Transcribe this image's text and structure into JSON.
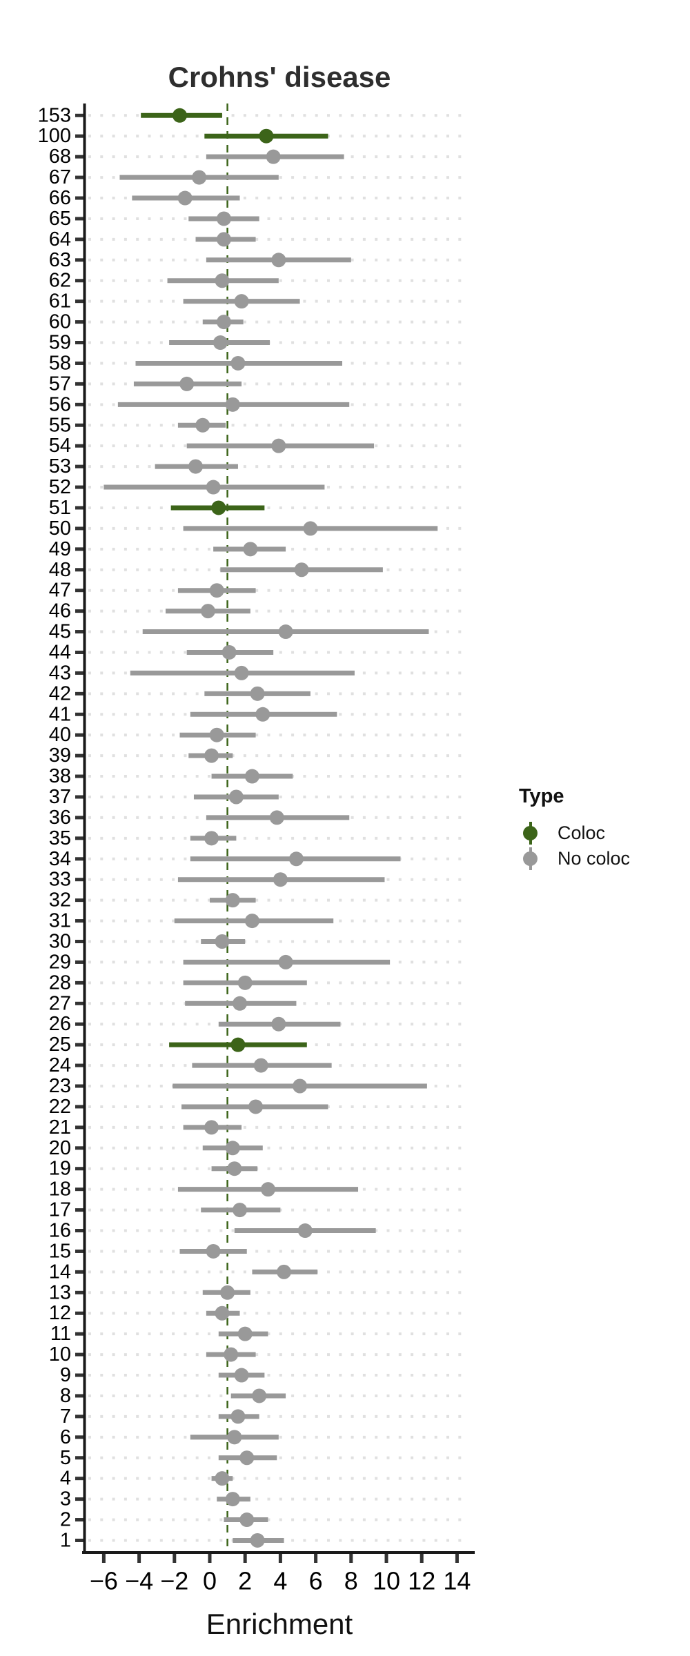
{
  "title": "Crohns' disease",
  "xlabel": "Enrichment",
  "legend": {
    "title": "Type",
    "items": [
      {
        "label": "Coloc",
        "color": "#3C6419"
      },
      {
        "label": "No coloc",
        "color": "#999999"
      }
    ]
  },
  "colors": {
    "coloc": "#3C6419",
    "no_coloc": "#999999",
    "ref_line": "#3C6419",
    "grid_dots": "#E0E0E0",
    "axis_line": "#1a1a1a",
    "tick_mark": "#333333",
    "tick_text": "#000000"
  },
  "chart_data": {
    "type": "forest (dot + interval)",
    "title": "Crohns' disease",
    "xlabel": "Enrichment",
    "ylabel": "",
    "x_ticks": [
      -6,
      -4,
      -2,
      0,
      2,
      4,
      6,
      8,
      10,
      12,
      14
    ],
    "xlim": [
      -7.15,
      14.7
    ],
    "ref_line_x": 1,
    "grid": "dotted horizontal per row",
    "legend_position": "right",
    "rows": [
      {
        "label": "153",
        "type": "Coloc",
        "estimate": -1.7,
        "ci_low": -3.9,
        "ci_high": 0.7
      },
      {
        "label": "100",
        "type": "Coloc",
        "estimate": 3.2,
        "ci_low": -0.3,
        "ci_high": 6.7
      },
      {
        "label": "68",
        "type": "No coloc",
        "estimate": 3.6,
        "ci_low": -0.2,
        "ci_high": 7.6
      },
      {
        "label": "67",
        "type": "No coloc",
        "estimate": -0.6,
        "ci_low": -5.1,
        "ci_high": 3.9
      },
      {
        "label": "66",
        "type": "No coloc",
        "estimate": -1.4,
        "ci_low": -4.4,
        "ci_high": 1.7
      },
      {
        "label": "65",
        "type": "No coloc",
        "estimate": 0.8,
        "ci_low": -1.2,
        "ci_high": 2.8
      },
      {
        "label": "64",
        "type": "No coloc",
        "estimate": 0.8,
        "ci_low": -0.8,
        "ci_high": 2.6
      },
      {
        "label": "63",
        "type": "No coloc",
        "estimate": 3.9,
        "ci_low": -0.2,
        "ci_high": 8.0
      },
      {
        "label": "62",
        "type": "No coloc",
        "estimate": 0.7,
        "ci_low": -2.4,
        "ci_high": 3.9
      },
      {
        "label": "61",
        "type": "No coloc",
        "estimate": 1.8,
        "ci_low": -1.5,
        "ci_high": 5.1
      },
      {
        "label": "60",
        "type": "No coloc",
        "estimate": 0.8,
        "ci_low": -0.4,
        "ci_high": 1.9
      },
      {
        "label": "59",
        "type": "No coloc",
        "estimate": 0.6,
        "ci_low": -2.3,
        "ci_high": 3.4
      },
      {
        "label": "58",
        "type": "No coloc",
        "estimate": 1.6,
        "ci_low": -4.2,
        "ci_high": 7.5
      },
      {
        "label": "57",
        "type": "No coloc",
        "estimate": -1.3,
        "ci_low": -4.3,
        "ci_high": 1.8
      },
      {
        "label": "56",
        "type": "No coloc",
        "estimate": 1.3,
        "ci_low": -5.2,
        "ci_high": 7.9
      },
      {
        "label": "55",
        "type": "No coloc",
        "estimate": -0.4,
        "ci_low": -1.8,
        "ci_high": 0.9
      },
      {
        "label": "54",
        "type": "No coloc",
        "estimate": 3.9,
        "ci_low": -1.3,
        "ci_high": 9.3
      },
      {
        "label": "53",
        "type": "No coloc",
        "estimate": -0.8,
        "ci_low": -3.1,
        "ci_high": 1.6
      },
      {
        "label": "52",
        "type": "No coloc",
        "estimate": 0.2,
        "ci_low": -6.0,
        "ci_high": 6.5
      },
      {
        "label": "51",
        "type": "Coloc",
        "estimate": 0.5,
        "ci_low": -2.2,
        "ci_high": 3.1
      },
      {
        "label": "50",
        "type": "No coloc",
        "estimate": 5.7,
        "ci_low": -1.5,
        "ci_high": 12.9
      },
      {
        "label": "49",
        "type": "No coloc",
        "estimate": 2.3,
        "ci_low": 0.2,
        "ci_high": 4.3
      },
      {
        "label": "48",
        "type": "No coloc",
        "estimate": 5.2,
        "ci_low": 0.6,
        "ci_high": 9.8
      },
      {
        "label": "47",
        "type": "No coloc",
        "estimate": 0.4,
        "ci_low": -1.8,
        "ci_high": 2.6
      },
      {
        "label": "46",
        "type": "No coloc",
        "estimate": -0.1,
        "ci_low": -2.5,
        "ci_high": 2.3
      },
      {
        "label": "45",
        "type": "No coloc",
        "estimate": 4.3,
        "ci_low": -3.8,
        "ci_high": 12.4
      },
      {
        "label": "44",
        "type": "No coloc",
        "estimate": 1.1,
        "ci_low": -1.3,
        "ci_high": 3.6
      },
      {
        "label": "43",
        "type": "No coloc",
        "estimate": 1.8,
        "ci_low": -4.5,
        "ci_high": 8.2
      },
      {
        "label": "42",
        "type": "No coloc",
        "estimate": 2.7,
        "ci_low": -0.3,
        "ci_high": 5.7
      },
      {
        "label": "41",
        "type": "No coloc",
        "estimate": 3.0,
        "ci_low": -1.1,
        "ci_high": 7.2
      },
      {
        "label": "40",
        "type": "No coloc",
        "estimate": 0.4,
        "ci_low": -1.7,
        "ci_high": 2.6
      },
      {
        "label": "39",
        "type": "No coloc",
        "estimate": 0.1,
        "ci_low": -1.2,
        "ci_high": 1.3
      },
      {
        "label": "38",
        "type": "No coloc",
        "estimate": 2.4,
        "ci_low": 0.1,
        "ci_high": 4.7
      },
      {
        "label": "37",
        "type": "No coloc",
        "estimate": 1.5,
        "ci_low": -0.9,
        "ci_high": 3.9
      },
      {
        "label": "36",
        "type": "No coloc",
        "estimate": 3.8,
        "ci_low": -0.2,
        "ci_high": 7.9
      },
      {
        "label": "35",
        "type": "No coloc",
        "estimate": 0.1,
        "ci_low": -1.1,
        "ci_high": 1.5
      },
      {
        "label": "34",
        "type": "No coloc",
        "estimate": 4.9,
        "ci_low": -1.1,
        "ci_high": 10.8
      },
      {
        "label": "33",
        "type": "No coloc",
        "estimate": 4.0,
        "ci_low": -1.8,
        "ci_high": 9.9
      },
      {
        "label": "32",
        "type": "No coloc",
        "estimate": 1.3,
        "ci_low": 0.0,
        "ci_high": 2.6
      },
      {
        "label": "31",
        "type": "No coloc",
        "estimate": 2.4,
        "ci_low": -2.0,
        "ci_high": 7.0
      },
      {
        "label": "30",
        "type": "No coloc",
        "estimate": 0.7,
        "ci_low": -0.5,
        "ci_high": 2.0
      },
      {
        "label": "29",
        "type": "No coloc",
        "estimate": 4.3,
        "ci_low": -1.5,
        "ci_high": 10.2
      },
      {
        "label": "28",
        "type": "No coloc",
        "estimate": 2.0,
        "ci_low": -1.5,
        "ci_high": 5.5
      },
      {
        "label": "27",
        "type": "No coloc",
        "estimate": 1.7,
        "ci_low": -1.4,
        "ci_high": 4.9
      },
      {
        "label": "26",
        "type": "No coloc",
        "estimate": 3.9,
        "ci_low": 0.5,
        "ci_high": 7.4
      },
      {
        "label": "25",
        "type": "Coloc",
        "estimate": 1.6,
        "ci_low": -2.3,
        "ci_high": 5.5
      },
      {
        "label": "24",
        "type": "No coloc",
        "estimate": 2.9,
        "ci_low": -1.0,
        "ci_high": 6.9
      },
      {
        "label": "23",
        "type": "No coloc",
        "estimate": 5.1,
        "ci_low": -2.1,
        "ci_high": 12.3
      },
      {
        "label": "22",
        "type": "No coloc",
        "estimate": 2.6,
        "ci_low": -1.6,
        "ci_high": 6.7
      },
      {
        "label": "21",
        "type": "No coloc",
        "estimate": 0.1,
        "ci_low": -1.5,
        "ci_high": 1.8
      },
      {
        "label": "20",
        "type": "No coloc",
        "estimate": 1.3,
        "ci_low": -0.4,
        "ci_high": 3.0
      },
      {
        "label": "19",
        "type": "No coloc",
        "estimate": 1.4,
        "ci_low": 0.1,
        "ci_high": 2.7
      },
      {
        "label": "18",
        "type": "No coloc",
        "estimate": 3.3,
        "ci_low": -1.8,
        "ci_high": 8.4
      },
      {
        "label": "17",
        "type": "No coloc",
        "estimate": 1.7,
        "ci_low": -0.5,
        "ci_high": 4.0
      },
      {
        "label": "16",
        "type": "No coloc",
        "estimate": 5.4,
        "ci_low": 1.4,
        "ci_high": 9.4
      },
      {
        "label": "15",
        "type": "No coloc",
        "estimate": 0.2,
        "ci_low": -1.7,
        "ci_high": 2.1
      },
      {
        "label": "14",
        "type": "No coloc",
        "estimate": 4.2,
        "ci_low": 2.4,
        "ci_high": 6.1
      },
      {
        "label": "13",
        "type": "No coloc",
        "estimate": 1.0,
        "ci_low": -0.4,
        "ci_high": 2.3
      },
      {
        "label": "12",
        "type": "No coloc",
        "estimate": 0.7,
        "ci_low": -0.2,
        "ci_high": 1.7
      },
      {
        "label": "11",
        "type": "No coloc",
        "estimate": 2.0,
        "ci_low": 0.5,
        "ci_high": 3.3
      },
      {
        "label": "10",
        "type": "No coloc",
        "estimate": 1.2,
        "ci_low": -0.2,
        "ci_high": 2.6
      },
      {
        "label": "9",
        "type": "No coloc",
        "estimate": 1.8,
        "ci_low": 0.5,
        "ci_high": 3.1
      },
      {
        "label": "8",
        "type": "No coloc",
        "estimate": 2.8,
        "ci_low": 1.2,
        "ci_high": 4.3
      },
      {
        "label": "7",
        "type": "No coloc",
        "estimate": 1.6,
        "ci_low": 0.5,
        "ci_high": 2.8
      },
      {
        "label": "6",
        "type": "No coloc",
        "estimate": 1.4,
        "ci_low": -1.1,
        "ci_high": 3.9
      },
      {
        "label": "5",
        "type": "No coloc",
        "estimate": 2.1,
        "ci_low": 0.5,
        "ci_high": 3.8
      },
      {
        "label": "4",
        "type": "No coloc",
        "estimate": 0.7,
        "ci_low": 0.1,
        "ci_high": 1.3
      },
      {
        "label": "3",
        "type": "No coloc",
        "estimate": 1.3,
        "ci_low": 0.4,
        "ci_high": 2.3
      },
      {
        "label": "2",
        "type": "No coloc",
        "estimate": 2.1,
        "ci_low": 0.8,
        "ci_high": 3.3
      },
      {
        "label": "1",
        "type": "No coloc",
        "estimate": 2.7,
        "ci_low": 1.3,
        "ci_high": 4.2
      }
    ]
  }
}
